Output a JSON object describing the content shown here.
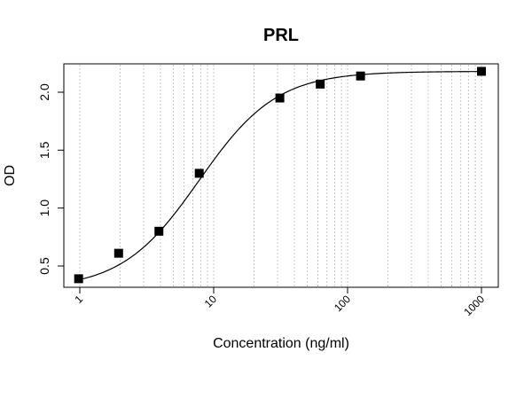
{
  "chart_data": {
    "type": "scatter",
    "title": "PRL",
    "xlabel": "Concentration (ng/ml)",
    "ylabel": "OD",
    "x_scale": "log",
    "xlim": [
      1,
      1000
    ],
    "ylim": [
      0.35,
      2.3
    ],
    "x_ticks": [
      1,
      10,
      100,
      1000
    ],
    "x_tick_labels": [
      "1",
      "10",
      "100",
      "1000"
    ],
    "y_ticks": [
      0.5,
      1.0,
      1.5,
      2.0
    ],
    "y_tick_labels": [
      "0.5",
      "1.0",
      "1.5",
      "2.0"
    ],
    "grid": "vertical dotted (log minor)",
    "series": [
      {
        "points": [
          {
            "x": 0.98,
            "y": 0.39
          },
          {
            "x": 1.95,
            "y": 0.61
          },
          {
            "x": 3.9,
            "y": 0.8
          },
          {
            "x": 7.8,
            "y": 1.3
          },
          {
            "x": 31.2,
            "y": 1.95
          },
          {
            "x": 62.5,
            "y": 2.07
          },
          {
            "x": 125,
            "y": 2.14
          },
          {
            "x": 1000,
            "y": 2.18
          }
        ]
      }
    ],
    "fit_curve": {
      "model": "4PL",
      "bottom": 0.3,
      "top": 2.18,
      "ec50": 7.8,
      "hill": 1.5
    }
  }
}
